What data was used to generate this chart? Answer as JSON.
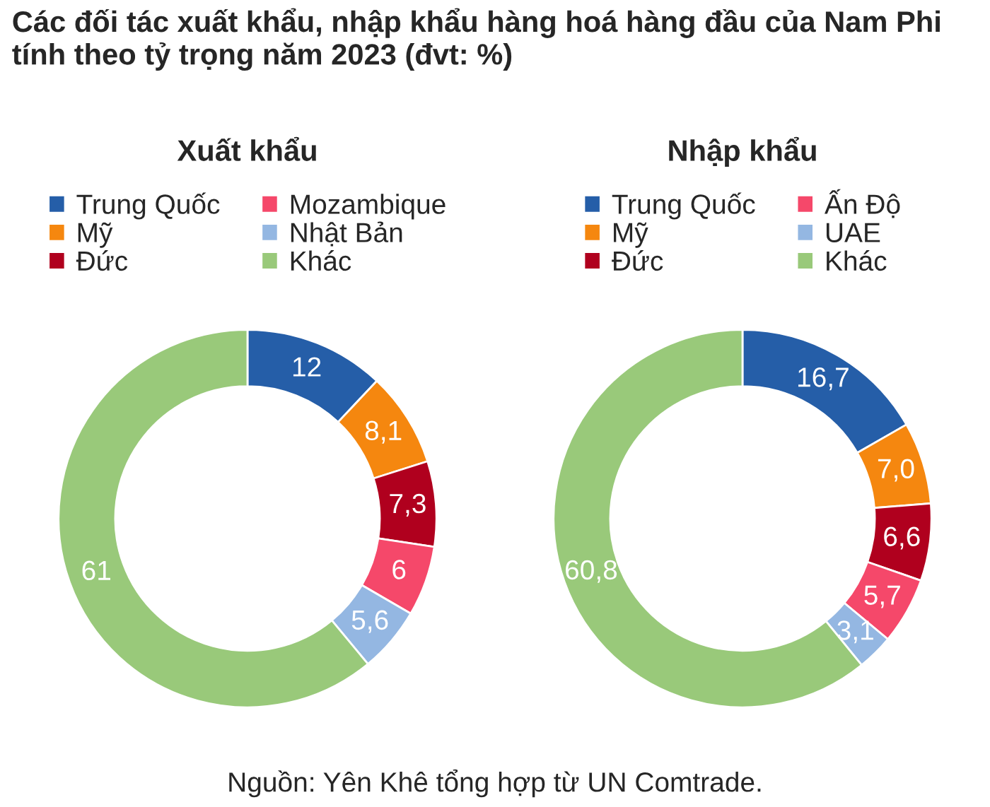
{
  "chart_data": [
    {
      "type": "donut",
      "title": "Xuất khẩu",
      "legend": "top",
      "annotations": [
        "Các đối tác xuất khẩu, nhập khẩu hàng hoá hàng đầu của Nam Phi tính theo tỷ trọng năm 2023 (đvt: %)"
      ],
      "categories": [
        "Trung Quốc",
        "Mỹ",
        "Đức",
        "Mozambique",
        "Nhật Bản",
        "Khác"
      ],
      "values": [
        12,
        8.1,
        7.3,
        6,
        5.6,
        61
      ],
      "value_labels": [
        "12",
        "8,1",
        "7,3",
        "6",
        "5,6",
        "61"
      ],
      "colors": [
        "#255ea8",
        "#f5870f",
        "#b0001e",
        "#f5486a",
        "#94b7e2",
        "#99c97a"
      ]
    },
    {
      "type": "donut",
      "title": "Nhập khẩu",
      "legend": "top",
      "annotations": [
        "Nguồn: Yên Khê tổng hợp từ UN Comtrade."
      ],
      "categories": [
        "Trung Quốc",
        "Mỹ",
        "Đức",
        "Ấn Độ",
        "UAE",
        "Khác"
      ],
      "values": [
        16.7,
        7.0,
        6.6,
        5.7,
        3.1,
        60.8
      ],
      "value_labels": [
        "16,7",
        "7,0",
        "6,6",
        "5,7",
        "3,1",
        "60,8"
      ],
      "colors": [
        "#255ea8",
        "#f5870f",
        "#b0001e",
        "#f5486a",
        "#94b7e2",
        "#99c97a"
      ]
    }
  ]
}
